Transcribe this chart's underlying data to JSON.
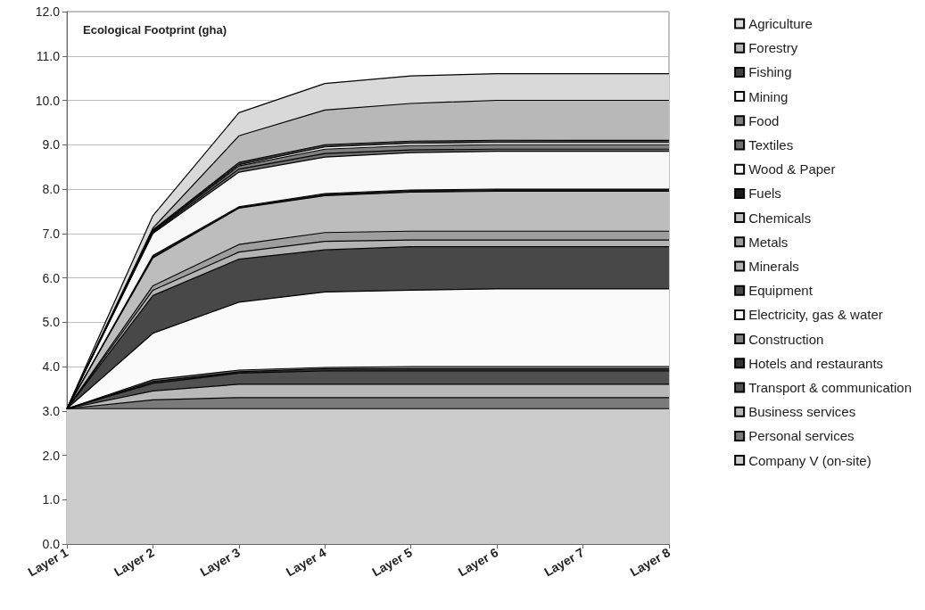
{
  "chart_data": {
    "type": "area",
    "stacked": true,
    "title": "Ecological Footprint (gha)",
    "categories": [
      "Layer 1",
      "Layer 2",
      "Layer 3",
      "Layer 4",
      "Layer 5",
      "Layer 6",
      "Layer 7",
      "Layer 8"
    ],
    "ylim": [
      0,
      12
    ],
    "yticks": [
      {
        "value": 0,
        "label": "0.0"
      },
      {
        "value": 1,
        "label": "1.0"
      },
      {
        "value": 2,
        "label": "2.0"
      },
      {
        "value": 3,
        "label": "3.0"
      },
      {
        "value": 4,
        "label": "4.0"
      },
      {
        "value": 5,
        "label": "5.0"
      },
      {
        "value": 6,
        "label": "6.0"
      },
      {
        "value": 7,
        "label": "7.0"
      },
      {
        "value": 8,
        "label": "8.0"
      },
      {
        "value": 9,
        "label": "9.0"
      },
      {
        "value": 10,
        "label": "10.0"
      },
      {
        "value": 11,
        "label": "11.0"
      },
      {
        "value": 12,
        "label": "12.0"
      }
    ],
    "grid": "y",
    "legend": "right",
    "marker": "none",
    "line_style": "solid",
    "series": [
      {
        "name": "Company V (on-site)",
        "color": "#cccccc",
        "values": [
          3.05,
          3.05,
          3.05,
          3.05,
          3.05,
          3.05,
          3.05,
          3.05
        ]
      },
      {
        "name": "Personal services",
        "color": "#7a7a7a",
        "values": [
          0,
          0.2,
          0.25,
          0.25,
          0.25,
          0.25,
          0.25,
          0.25
        ]
      },
      {
        "name": "Business services",
        "color": "#b8b8b8",
        "values": [
          0,
          0.2,
          0.3,
          0.3,
          0.3,
          0.3,
          0.3,
          0.3
        ]
      },
      {
        "name": "Transport & communication",
        "color": "#505050",
        "values": [
          0,
          0.17,
          0.25,
          0.3,
          0.3,
          0.3,
          0.3,
          0.3
        ]
      },
      {
        "name": "Hotels and restaurants",
        "color": "#333333",
        "values": [
          0,
          0.04,
          0.03,
          0.05,
          0.05,
          0.05,
          0.05,
          0.05
        ]
      },
      {
        "name": "Construction",
        "color": "#808080",
        "values": [
          0,
          0.04,
          0.04,
          0.03,
          0.05,
          0.05,
          0.05,
          0.05
        ]
      },
      {
        "name": "Electricity, gas & water",
        "color": "#fafafa",
        "values": [
          0,
          1.05,
          1.53,
          1.7,
          1.72,
          1.75,
          1.75,
          1.75
        ]
      },
      {
        "name": "Equipment",
        "color": "#484848",
        "values": [
          0,
          0.85,
          0.97,
          0.95,
          0.98,
          0.95,
          0.95,
          0.95
        ]
      },
      {
        "name": "Minerals",
        "color": "#b3b3b3",
        "values": [
          0,
          0.12,
          0.16,
          0.19,
          0.15,
          0.15,
          0.15,
          0.15
        ]
      },
      {
        "name": "Metals",
        "color": "#9e9e9e",
        "values": [
          0,
          0.1,
          0.17,
          0.2,
          0.2,
          0.2,
          0.2,
          0.2
        ]
      },
      {
        "name": "Chemicals",
        "color": "#bdbdbd",
        "values": [
          0,
          0.63,
          0.82,
          0.83,
          0.88,
          0.9,
          0.9,
          0.9
        ]
      },
      {
        "name": "Fuels",
        "color": "#1a1a1a",
        "values": [
          0,
          0.05,
          0.03,
          0.05,
          0.05,
          0.05,
          0.05,
          0.05
        ]
      },
      {
        "name": "Wood & Paper",
        "color": "#f8f8f8",
        "values": [
          0,
          0.5,
          0.78,
          0.82,
          0.84,
          0.85,
          0.85,
          0.85
        ]
      },
      {
        "name": "Textiles",
        "color": "#707070",
        "values": [
          0,
          0.02,
          0.07,
          0.08,
          0.06,
          0.05,
          0.05,
          0.05
        ]
      },
      {
        "name": "Food",
        "color": "#808080",
        "values": [
          0,
          0.02,
          0.07,
          0.1,
          0.1,
          0.1,
          0.1,
          0.1
        ]
      },
      {
        "name": "Mining",
        "color": "#f5f5f5",
        "values": [
          0,
          0.02,
          0.03,
          0.05,
          0.05,
          0.05,
          0.05,
          0.05
        ]
      },
      {
        "name": "Fishing",
        "color": "#404040",
        "values": [
          0,
          0.02,
          0.05,
          0.05,
          0.05,
          0.05,
          0.05,
          0.05
        ]
      },
      {
        "name": "Forestry",
        "color": "#b8b8b8",
        "values": [
          0,
          0.04,
          0.6,
          0.78,
          0.85,
          0.9,
          0.9,
          0.9
        ]
      },
      {
        "name": "Agriculture",
        "color": "#d9d9d9",
        "values": [
          0,
          0.28,
          0.52,
          0.6,
          0.62,
          0.6,
          0.6,
          0.6
        ]
      }
    ]
  }
}
